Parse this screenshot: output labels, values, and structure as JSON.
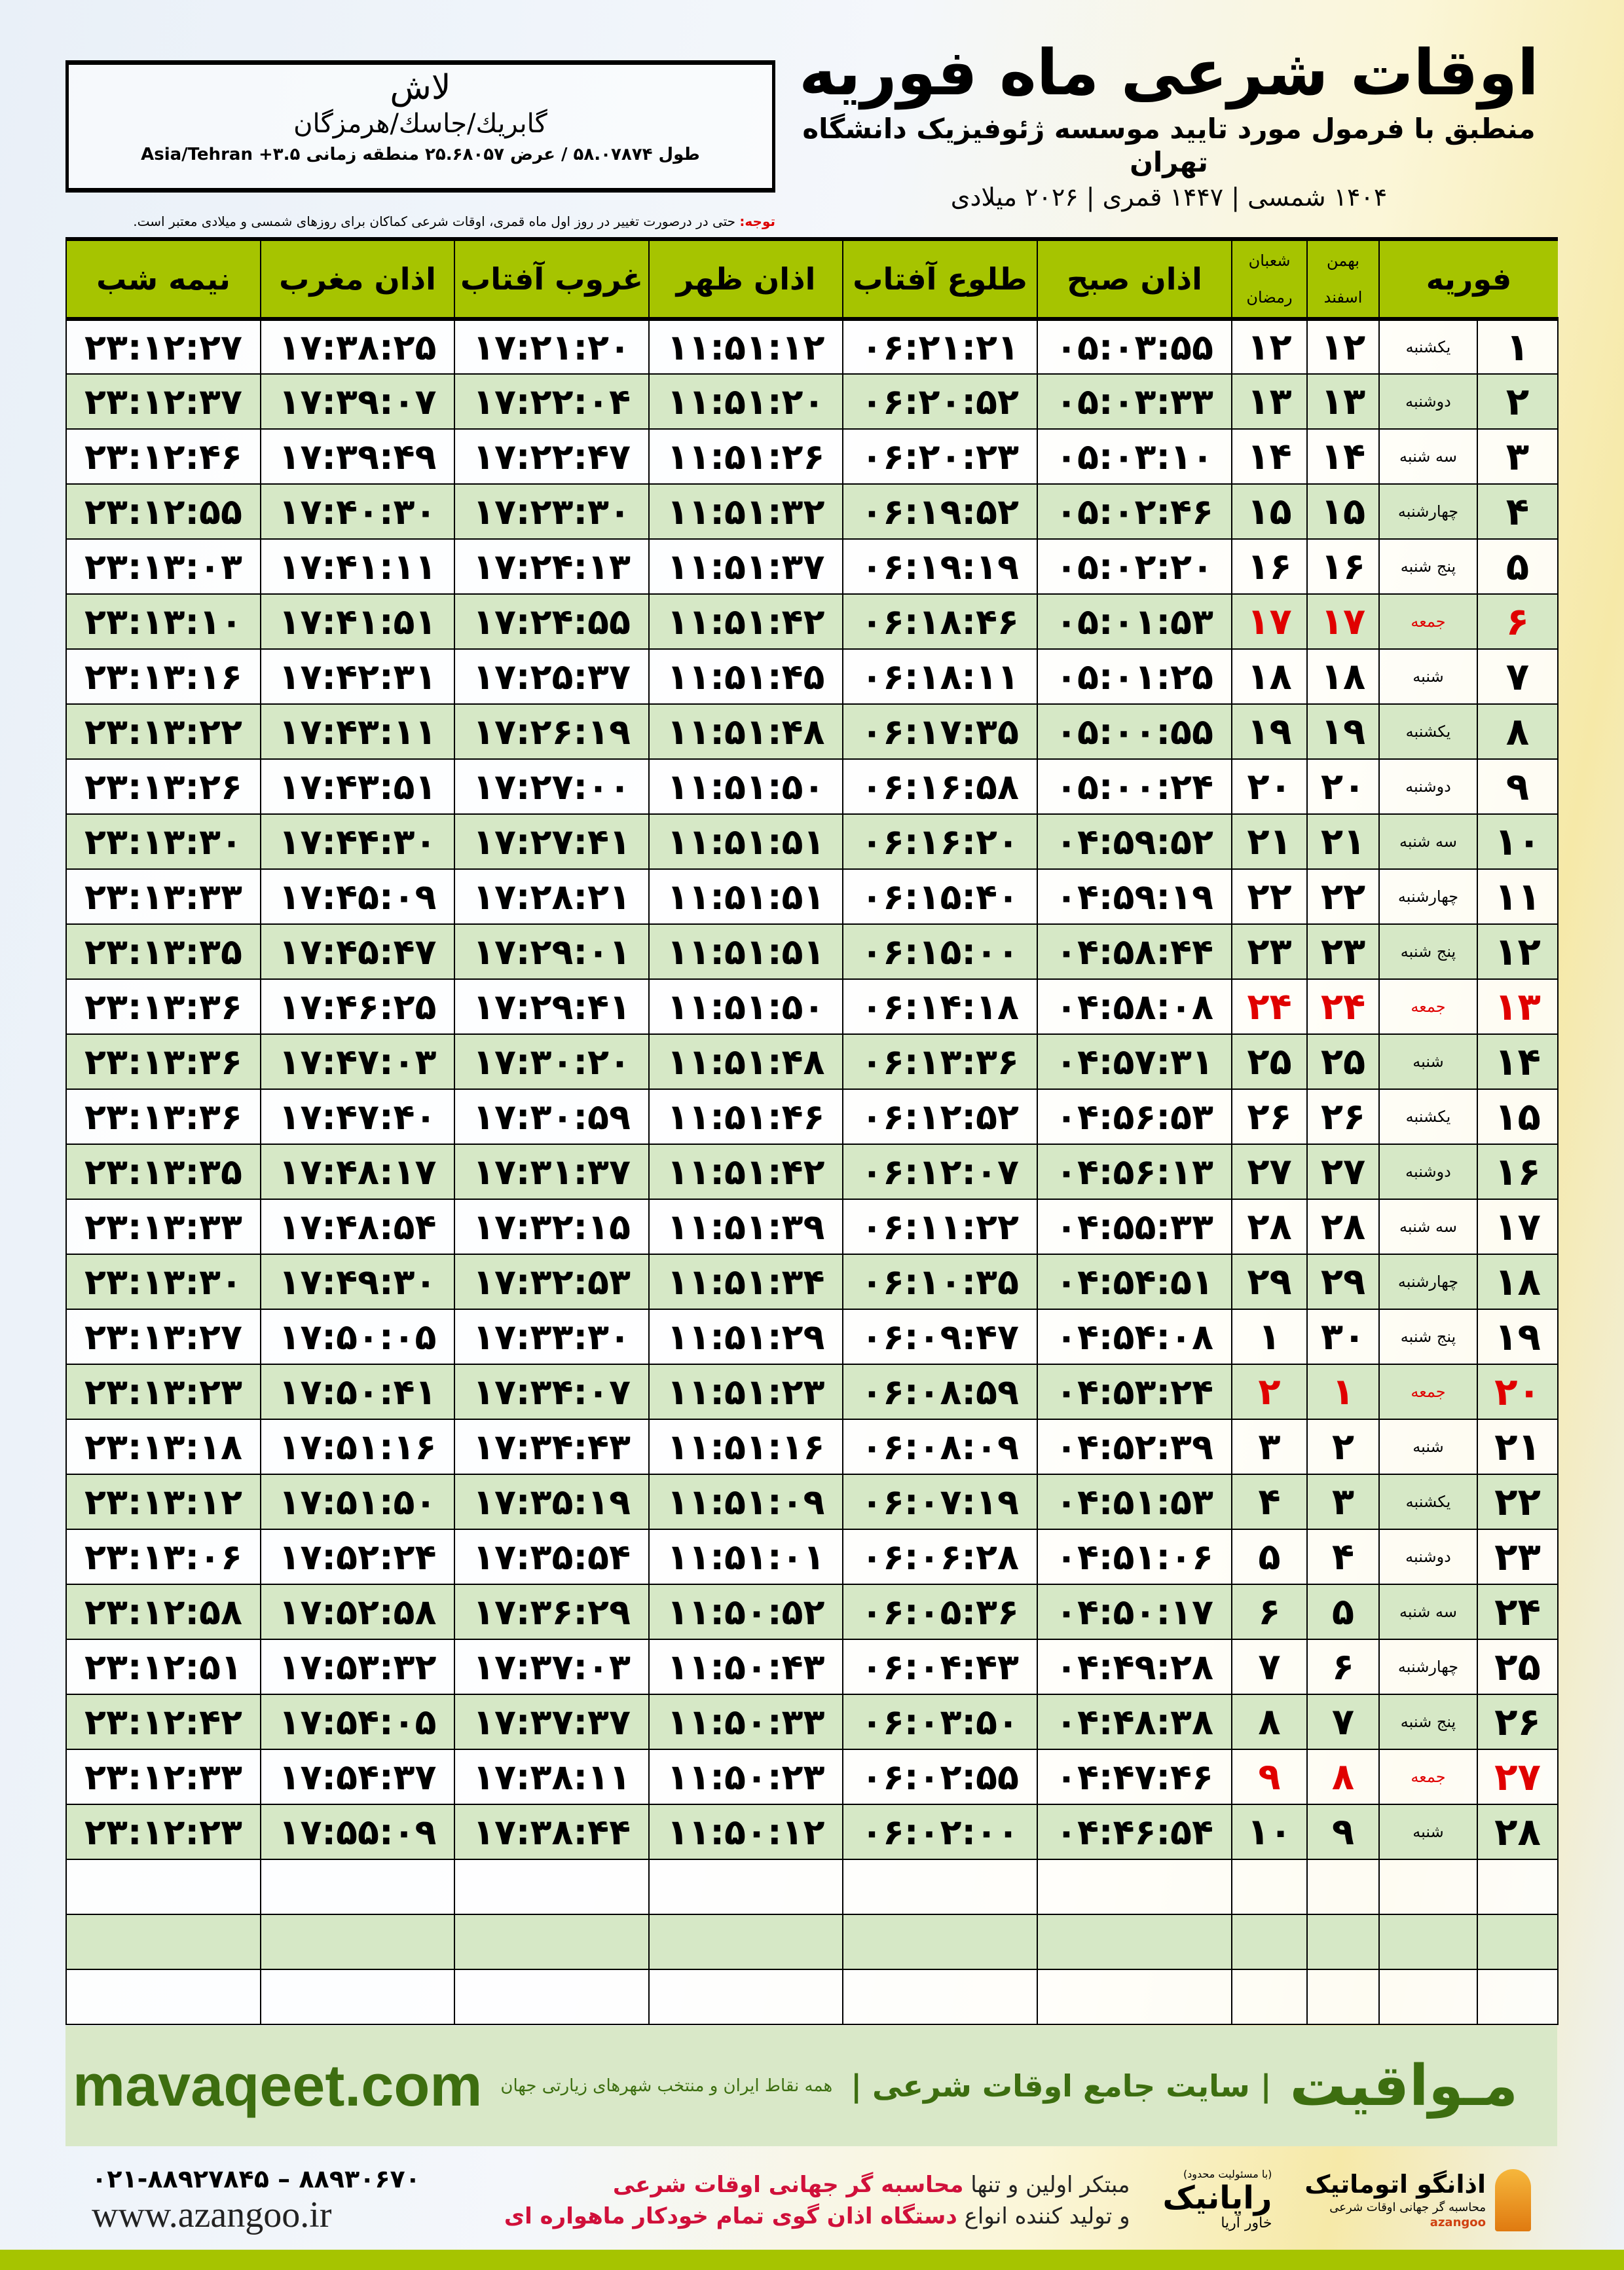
{
  "header": {
    "title": "اوقات شرعی ماه فوریه",
    "subtitle": "منطبق با فرمول مورد تایید موسسه ژئوفیزیک دانشگاه تهران",
    "dates": "۱۴۰۴ شمسی | ۱۴۴۷ قمری | ۲۰۲۶ میلادی"
  },
  "location": {
    "city": "لاش",
    "region": "گابريك/جاسك/هرمزگان",
    "geo": "طول ۵۸.۰۷۸۷۴ / عرض ۲۵.۶۸۰۵۷ منطقه زمانی ۳.۵+ Asia/Tehran"
  },
  "note": {
    "label": "توجه:",
    "text": " حتی در درصورت تغییر در روز اول ماه قمری، اوقات شرعی کماکان برای روزهای شمسی و میلادی معتبر است."
  },
  "table": {
    "columns": {
      "month": "فوریه",
      "shamsi_top": "بهمن",
      "shamsi_bottom": "اسفند",
      "qamari_top": "شعبان",
      "qamari_bottom": "رمضان",
      "sobh": "اذان صبح",
      "tolu": "طلوع آفتاب",
      "zohr": "اذان ظهر",
      "ghorub": "غروب آفتاب",
      "maghreb": "اذان مغرب",
      "nimeshab": "نیمه شب"
    },
    "rows": [
      [
        "۱",
        "یکشنبه",
        "۱۲",
        "۱۲",
        "۰۵:۰۳:۵۵",
        "۰۶:۲۱:۲۱",
        "۱۱:۵۱:۱۲",
        "۱۷:۲۱:۲۰",
        "۱۷:۳۸:۲۵",
        "۲۳:۱۲:۲۷"
      ],
      [
        "۲",
        "دوشنبه",
        "۱۳",
        "۱۳",
        "۰۵:۰۳:۳۳",
        "۰۶:۲۰:۵۲",
        "۱۱:۵۱:۲۰",
        "۱۷:۲۲:۰۴",
        "۱۷:۳۹:۰۷",
        "۲۳:۱۲:۳۷"
      ],
      [
        "۳",
        "سه شنبه",
        "۱۴",
        "۱۴",
        "۰۵:۰۳:۱۰",
        "۰۶:۲۰:۲۳",
        "۱۱:۵۱:۲۶",
        "۱۷:۲۲:۴۷",
        "۱۷:۳۹:۴۹",
        "۲۳:۱۲:۴۶"
      ],
      [
        "۴",
        "چهارشنبه",
        "۱۵",
        "۱۵",
        "۰۵:۰۲:۴۶",
        "۰۶:۱۹:۵۲",
        "۱۱:۵۱:۳۲",
        "۱۷:۲۳:۳۰",
        "۱۷:۴۰:۳۰",
        "۲۳:۱۲:۵۵"
      ],
      [
        "۵",
        "پنج شنبه",
        "۱۶",
        "۱۶",
        "۰۵:۰۲:۲۰",
        "۰۶:۱۹:۱۹",
        "۱۱:۵۱:۳۷",
        "۱۷:۲۴:۱۳",
        "۱۷:۴۱:۱۱",
        "۲۳:۱۳:۰۳"
      ],
      [
        "۶",
        "جمعه",
        "۱۷",
        "۱۷",
        "۰۵:۰۱:۵۳",
        "۰۶:۱۸:۴۶",
        "۱۱:۵۱:۴۲",
        "۱۷:۲۴:۵۵",
        "۱۷:۴۱:۵۱",
        "۲۳:۱۳:۱۰"
      ],
      [
        "۷",
        "شنبه",
        "۱۸",
        "۱۸",
        "۰۵:۰۱:۲۵",
        "۰۶:۱۸:۱۱",
        "۱۱:۵۱:۴۵",
        "۱۷:۲۵:۳۷",
        "۱۷:۴۲:۳۱",
        "۲۳:۱۳:۱۶"
      ],
      [
        "۸",
        "یکشنبه",
        "۱۹",
        "۱۹",
        "۰۵:۰۰:۵۵",
        "۰۶:۱۷:۳۵",
        "۱۱:۵۱:۴۸",
        "۱۷:۲۶:۱۹",
        "۱۷:۴۳:۱۱",
        "۲۳:۱۳:۲۲"
      ],
      [
        "۹",
        "دوشنبه",
        "۲۰",
        "۲۰",
        "۰۵:۰۰:۲۴",
        "۰۶:۱۶:۵۸",
        "۱۱:۵۱:۵۰",
        "۱۷:۲۷:۰۰",
        "۱۷:۴۳:۵۱",
        "۲۳:۱۳:۲۶"
      ],
      [
        "۱۰",
        "سه شنبه",
        "۲۱",
        "۲۱",
        "۰۴:۵۹:۵۲",
        "۰۶:۱۶:۲۰",
        "۱۱:۵۱:۵۱",
        "۱۷:۲۷:۴۱",
        "۱۷:۴۴:۳۰",
        "۲۳:۱۳:۳۰"
      ],
      [
        "۱۱",
        "چهارشنبه",
        "۲۲",
        "۲۲",
        "۰۴:۵۹:۱۹",
        "۰۶:۱۵:۴۰",
        "۱۱:۵۱:۵۱",
        "۱۷:۲۸:۲۱",
        "۱۷:۴۵:۰۹",
        "۲۳:۱۳:۳۳"
      ],
      [
        "۱۲",
        "پنج شنبه",
        "۲۳",
        "۲۳",
        "۰۴:۵۸:۴۴",
        "۰۶:۱۵:۰۰",
        "۱۱:۵۱:۵۱",
        "۱۷:۲۹:۰۱",
        "۱۷:۴۵:۴۷",
        "۲۳:۱۳:۳۵"
      ],
      [
        "۱۳",
        "جمعه",
        "۲۴",
        "۲۴",
        "۰۴:۵۸:۰۸",
        "۰۶:۱۴:۱۸",
        "۱۱:۵۱:۵۰",
        "۱۷:۲۹:۴۱",
        "۱۷:۴۶:۲۵",
        "۲۳:۱۳:۳۶"
      ],
      [
        "۱۴",
        "شنبه",
        "۲۵",
        "۲۵",
        "۰۴:۵۷:۳۱",
        "۰۶:۱۳:۳۶",
        "۱۱:۵۱:۴۸",
        "۱۷:۳۰:۲۰",
        "۱۷:۴۷:۰۳",
        "۲۳:۱۳:۳۶"
      ],
      [
        "۱۵",
        "یکشنبه",
        "۲۶",
        "۲۶",
        "۰۴:۵۶:۵۳",
        "۰۶:۱۲:۵۲",
        "۱۱:۵۱:۴۶",
        "۱۷:۳۰:۵۹",
        "۱۷:۴۷:۴۰",
        "۲۳:۱۳:۳۶"
      ],
      [
        "۱۶",
        "دوشنبه",
        "۲۷",
        "۲۷",
        "۰۴:۵۶:۱۳",
        "۰۶:۱۲:۰۷",
        "۱۱:۵۱:۴۲",
        "۱۷:۳۱:۳۷",
        "۱۷:۴۸:۱۷",
        "۲۳:۱۳:۳۵"
      ],
      [
        "۱۷",
        "سه شنبه",
        "۲۸",
        "۲۸",
        "۰۴:۵۵:۳۳",
        "۰۶:۱۱:۲۲",
        "۱۱:۵۱:۳۹",
        "۱۷:۳۲:۱۵",
        "۱۷:۴۸:۵۴",
        "۲۳:۱۳:۳۳"
      ],
      [
        "۱۸",
        "چهارشنبه",
        "۲۹",
        "۲۹",
        "۰۴:۵۴:۵۱",
        "۰۶:۱۰:۳۵",
        "۱۱:۵۱:۳۴",
        "۱۷:۳۲:۵۳",
        "۱۷:۴۹:۳۰",
        "۲۳:۱۳:۳۰"
      ],
      [
        "۱۹",
        "پنج شنبه",
        "۳۰",
        "۱",
        "۰۴:۵۴:۰۸",
        "۰۶:۰۹:۴۷",
        "۱۱:۵۱:۲۹",
        "۱۷:۳۳:۳۰",
        "۱۷:۵۰:۰۵",
        "۲۳:۱۳:۲۷"
      ],
      [
        "۲۰",
        "جمعه",
        "۱",
        "۲",
        "۰۴:۵۳:۲۴",
        "۰۶:۰۸:۵۹",
        "۱۱:۵۱:۲۳",
        "۱۷:۳۴:۰۷",
        "۱۷:۵۰:۴۱",
        "۲۳:۱۳:۲۳"
      ],
      [
        "۲۱",
        "شنبه",
        "۲",
        "۳",
        "۰۴:۵۲:۳۹",
        "۰۶:۰۸:۰۹",
        "۱۱:۵۱:۱۶",
        "۱۷:۳۴:۴۳",
        "۱۷:۵۱:۱۶",
        "۲۳:۱۳:۱۸"
      ],
      [
        "۲۲",
        "یکشنبه",
        "۳",
        "۴",
        "۰۴:۵۱:۵۳",
        "۰۶:۰۷:۱۹",
        "۱۱:۵۱:۰۹",
        "۱۷:۳۵:۱۹",
        "۱۷:۵۱:۵۰",
        "۲۳:۱۳:۱۲"
      ],
      [
        "۲۳",
        "دوشنبه",
        "۴",
        "۵",
        "۰۴:۵۱:۰۶",
        "۰۶:۰۶:۲۸",
        "۱۱:۵۱:۰۱",
        "۱۷:۳۵:۵۴",
        "۱۷:۵۲:۲۴",
        "۲۳:۱۳:۰۶"
      ],
      [
        "۲۴",
        "سه شنبه",
        "۵",
        "۶",
        "۰۴:۵۰:۱۷",
        "۰۶:۰۵:۳۶",
        "۱۱:۵۰:۵۲",
        "۱۷:۳۶:۲۹",
        "۱۷:۵۲:۵۸",
        "۲۳:۱۲:۵۸"
      ],
      [
        "۲۵",
        "چهارشنبه",
        "۶",
        "۷",
        "۰۴:۴۹:۲۸",
        "۰۶:۰۴:۴۳",
        "۱۱:۵۰:۴۳",
        "۱۷:۳۷:۰۳",
        "۱۷:۵۳:۳۲",
        "۲۳:۱۲:۵۱"
      ],
      [
        "۲۶",
        "پنج شنبه",
        "۷",
        "۸",
        "۰۴:۴۸:۳۸",
        "۰۶:۰۳:۵۰",
        "۱۱:۵۰:۳۳",
        "۱۷:۳۷:۳۷",
        "۱۷:۵۴:۰۵",
        "۲۳:۱۲:۴۲"
      ],
      [
        "۲۷",
        "جمعه",
        "۸",
        "۹",
        "۰۴:۴۷:۴۶",
        "۰۶:۰۲:۵۵",
        "۱۱:۵۰:۲۳",
        "۱۷:۳۸:۱۱",
        "۱۷:۵۴:۳۷",
        "۲۳:۱۲:۳۳"
      ],
      [
        "۲۸",
        "شنبه",
        "۹",
        "۱۰",
        "۰۴:۴۶:۵۴",
        "۰۶:۰۲:۰۰",
        "۱۱:۵۰:۱۲",
        "۱۷:۳۸:۴۴",
        "۱۷:۵۵:۰۹",
        "۲۳:۱۲:۲۳"
      ]
    ],
    "friday_label": "جمعه",
    "empty_rows": 3
  },
  "footer": {
    "brand": "مـواقیت",
    "slogan": "| سایت جامع اوقات شرعی |",
    "slogan2": "همه نقاط ایران و منتخب شهرهای زیارتی جهان",
    "url": "mavaqeet.com",
    "line1a": "مبتکر اولین و تنها ",
    "line1b": "محاسبه گر جهانی اوقات شرعی",
    "line2a": "و تولید کننده انواع ",
    "line2b": "دستگاه اذان گوی تمام خودکار ماهواره ای",
    "phone": "۰۲۱-۸۸۹۲۷۸۴۵ – ۸۸۹۳۰۶۷۰",
    "website": "www.azangoo.ir",
    "logo1_text": "اذانگو اتوماتیک",
    "logo1_sub": "محاسبه گر جهانی اوقات شرعی",
    "logo1_brand": "azangoo",
    "logo2_note": "(با مسئولیت محدود)",
    "logo2_text": "رایانیک",
    "logo2_sub": "خاور آریا"
  },
  "colors": {
    "header_green": "#a6c400",
    "row_alt": "#d6e8c6",
    "friday_red": "#e00000",
    "brand_green": "#3d6e10"
  }
}
